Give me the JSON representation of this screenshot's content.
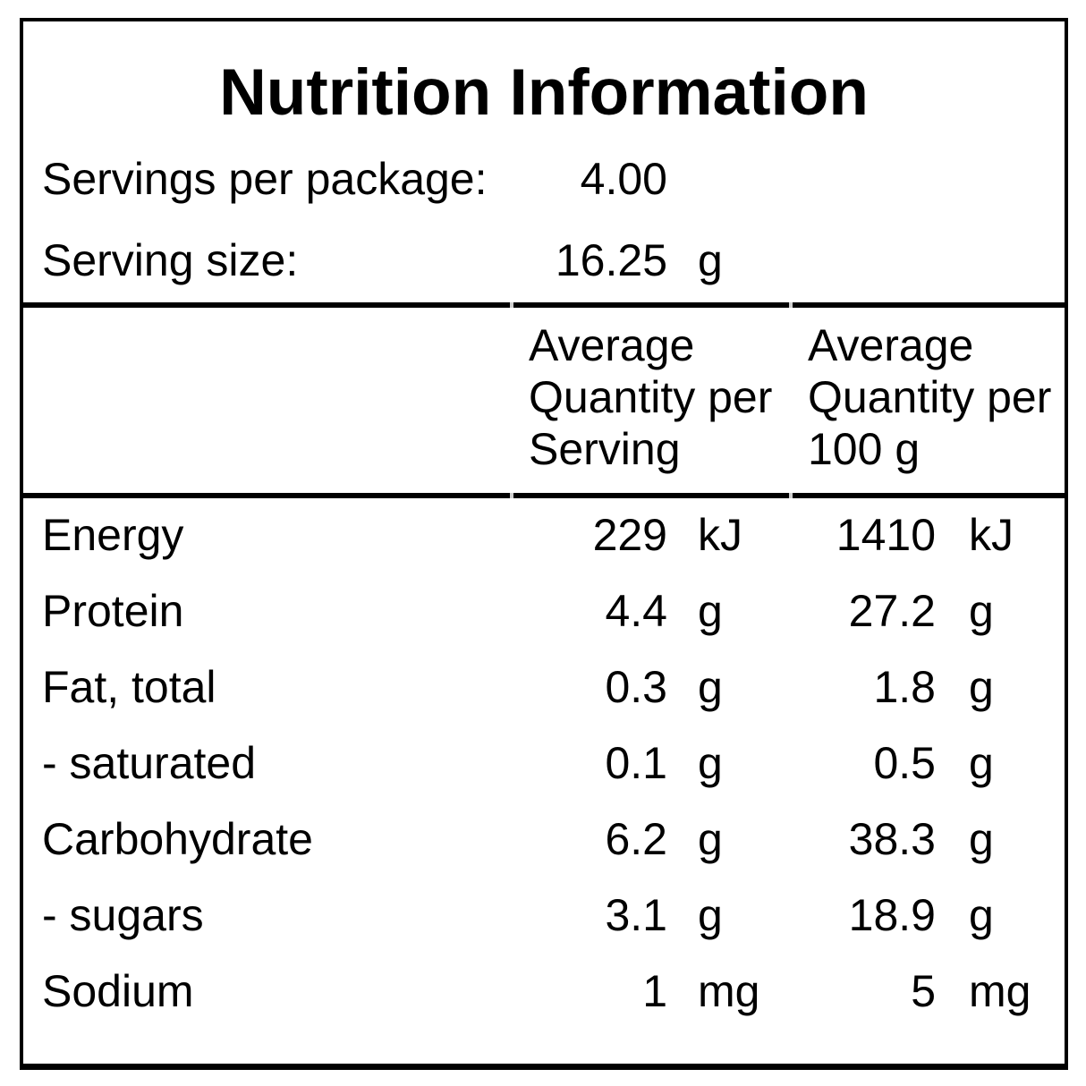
{
  "title": "Nutrition Information",
  "package_info": {
    "servings_label": "Servings per package:",
    "servings_value": "4.00",
    "serving_size_label": "Serving size:",
    "serving_size_value": "16.25",
    "serving_size_unit": "g"
  },
  "table": {
    "header_columns": [
      {
        "label": "Average Quantity per Serving",
        "lines": [
          "Average",
          "Quantity per",
          "Serving"
        ]
      },
      {
        "label": "Average Quantity per 100 g",
        "lines": [
          "Average",
          "Quantity per",
          "100 g"
        ]
      }
    ],
    "rows": [
      {
        "nutrient": "Energy",
        "per_serving": "229",
        "per_serving_unit": "kJ",
        "per_100g": "1410",
        "per_100g_unit": "kJ"
      },
      {
        "nutrient": "Protein",
        "per_serving": "4.4",
        "per_serving_unit": "g",
        "per_100g": "27.2",
        "per_100g_unit": "g"
      },
      {
        "nutrient": "Fat, total",
        "per_serving": "0.3",
        "per_serving_unit": "g",
        "per_100g": "1.8",
        "per_100g_unit": "g"
      },
      {
        "nutrient": "- saturated",
        "per_serving": "0.1",
        "per_serving_unit": "g",
        "per_100g": "0.5",
        "per_100g_unit": "g"
      },
      {
        "nutrient": "Carbohydrate",
        "per_serving": "6.2",
        "per_serving_unit": "g",
        "per_100g": "38.3",
        "per_100g_unit": "g"
      },
      {
        "nutrient": "- sugars",
        "per_serving": "3.1",
        "per_serving_unit": "g",
        "per_100g": "18.9",
        "per_100g_unit": "g"
      },
      {
        "nutrient": "Sodium",
        "per_serving": "1",
        "per_serving_unit": "mg",
        "per_100g": "5",
        "per_100g_unit": "mg"
      }
    ]
  },
  "colors": {
    "text": "#000000",
    "background": "#ffffff",
    "border": "#000000"
  }
}
